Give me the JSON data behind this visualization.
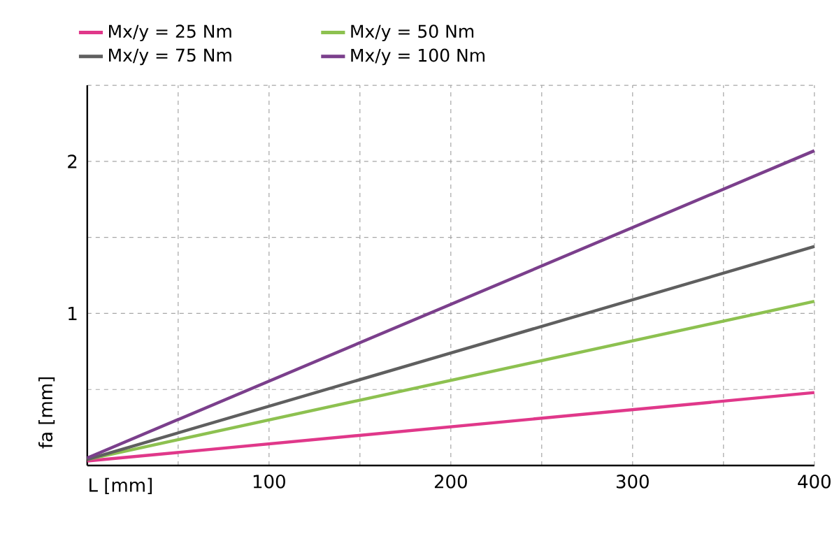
{
  "chart_data": {
    "type": "line",
    "xlabel": "L [mm]",
    "ylabel": "fa [mm]",
    "x": [
      0,
      400
    ],
    "series": [
      {
        "name": "Mx/y = 25 Nm",
        "color": "#e0388a",
        "values": [
          0.03,
          0.48
        ]
      },
      {
        "name": "Mx/y = 50 Nm",
        "color": "#8dc150",
        "values": [
          0.04,
          1.08
        ]
      },
      {
        "name": "Mx/y = 75 Nm",
        "color": "#5f5f5f",
        "values": [
          0.04,
          1.44
        ]
      },
      {
        "name": "Mx/y = 100 Nm",
        "color": "#7b3f8c",
        "values": [
          0.05,
          2.07
        ]
      }
    ],
    "xlim": [
      0,
      400
    ],
    "ylim": [
      0,
      2.5
    ],
    "xticks": [
      {
        "value": 50,
        "label": null
      },
      100,
      {
        "value": 150,
        "label": null
      },
      200,
      {
        "value": 250,
        "label": null
      },
      300,
      {
        "value": 350,
        "label": null
      },
      400
    ],
    "yticks": [
      {
        "value": 0.5,
        "label": null
      },
      1,
      {
        "value": 1.5,
        "label": null
      },
      2,
      {
        "value": 2.5,
        "label": null
      }
    ],
    "grid": true,
    "legend": "top",
    "marker": "none",
    "line_style": "solid"
  }
}
